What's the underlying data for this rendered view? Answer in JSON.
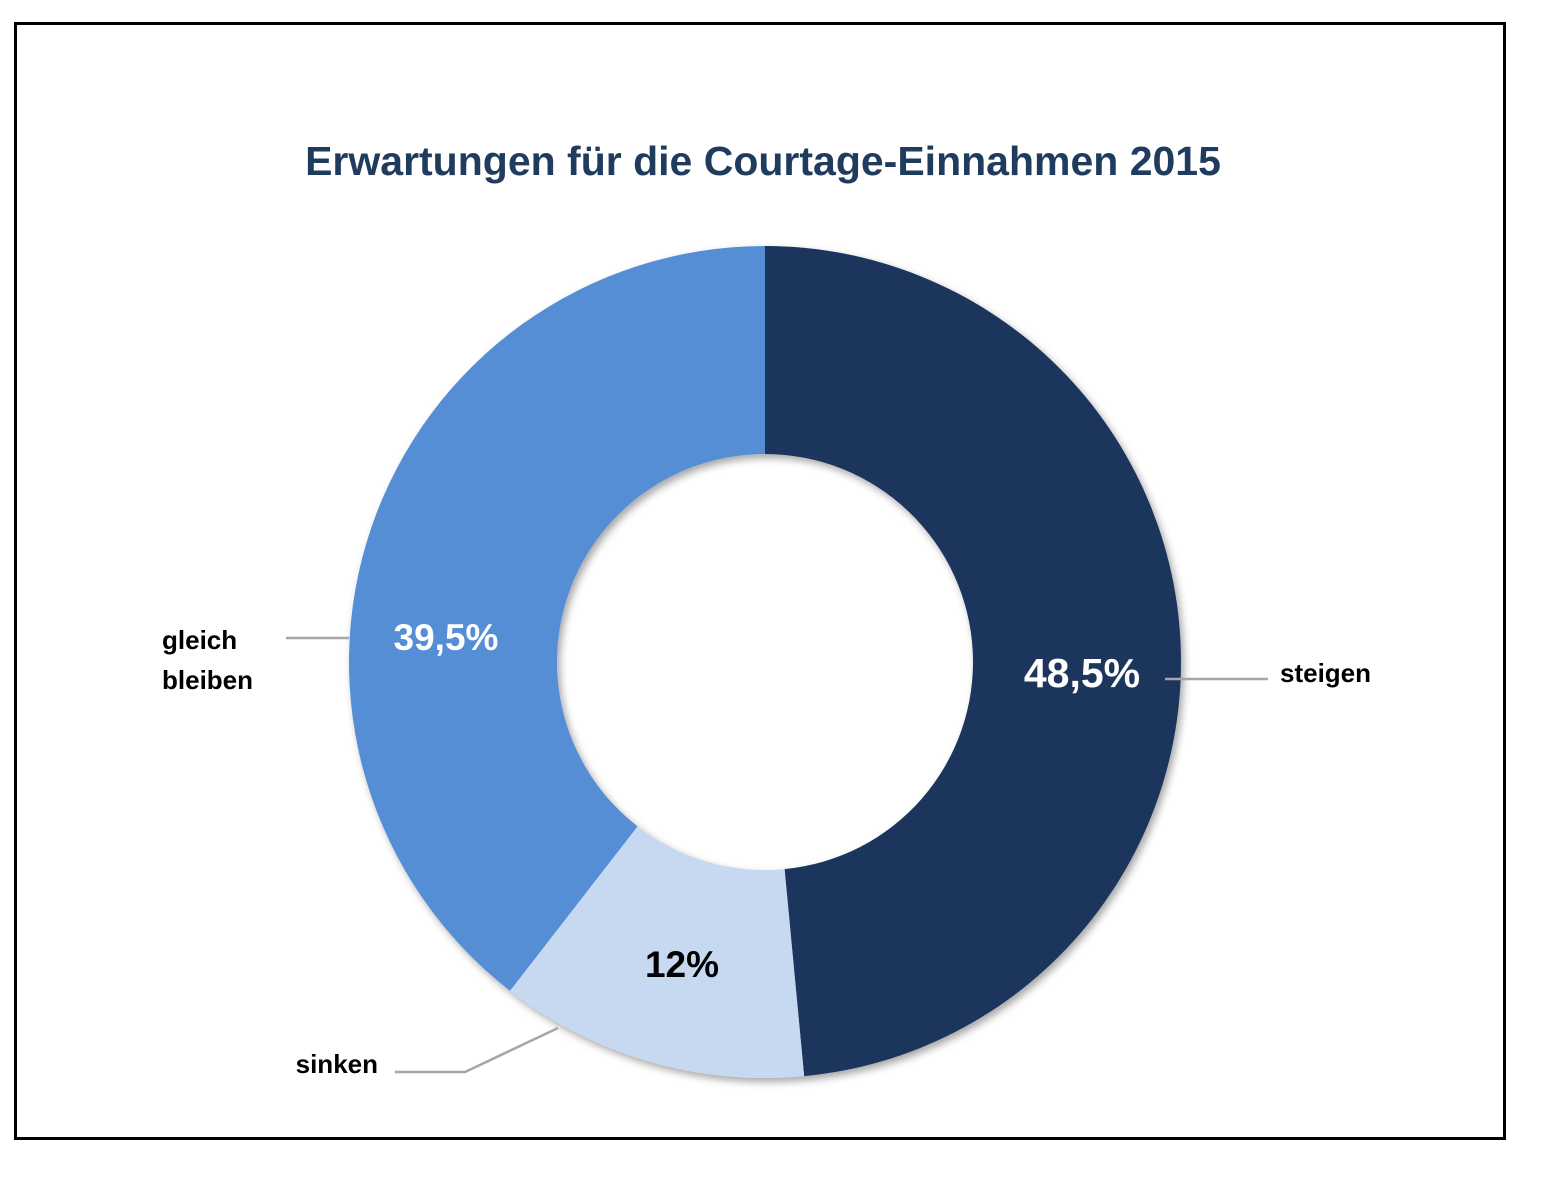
{
  "chart_data": {
    "type": "pie",
    "variant": "donut",
    "title": "Erwartungen für die Courtage-Einnahmen 2015",
    "categories": [
      "steigen",
      "sinken",
      "gleich bleiben"
    ],
    "values": [
      48.5,
      12,
      39.5
    ],
    "value_labels": [
      "48,5%",
      "12%",
      "39,5%"
    ],
    "category_labels": [
      [
        "steigen"
      ],
      [
        "sinken"
      ],
      [
        "gleich",
        "bleiben"
      ]
    ],
    "colors": [
      "#1b365d",
      "#c6d9f1",
      "#558ed5"
    ],
    "value_label_colors": [
      "#ffffff",
      "#000000",
      "#ffffff"
    ],
    "legend": "none",
    "start_angle": "top, clockwise"
  }
}
